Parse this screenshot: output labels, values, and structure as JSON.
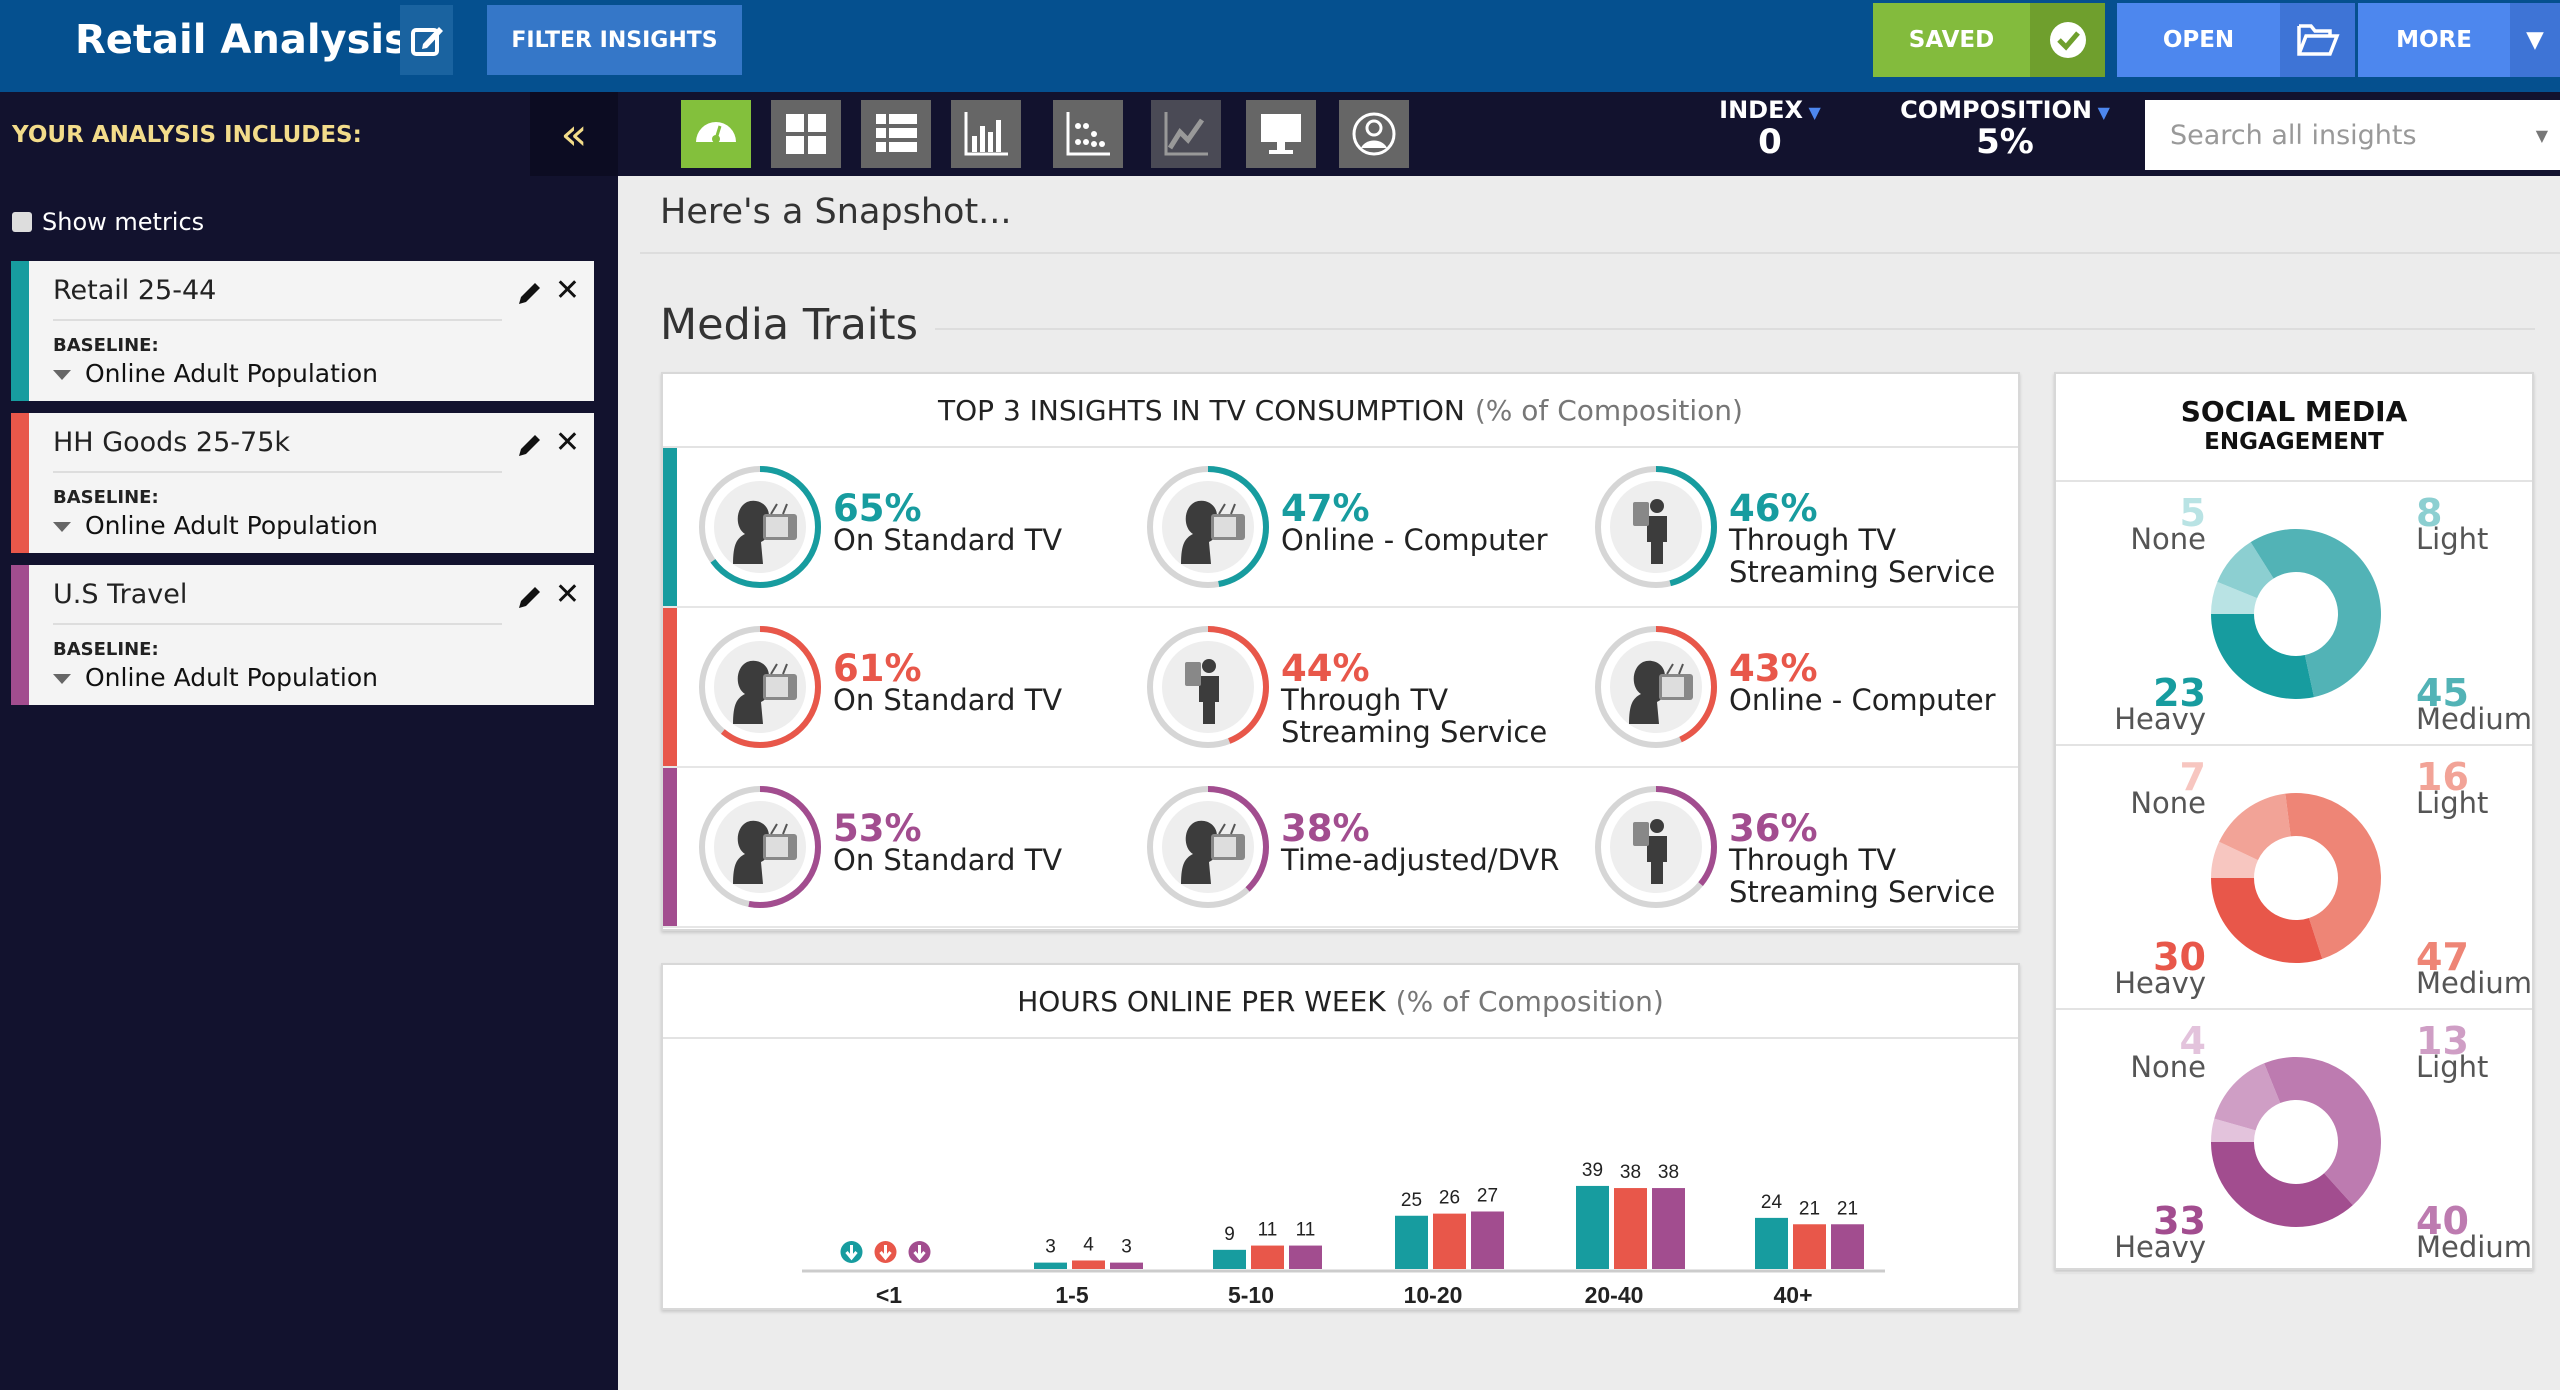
{
  "header": {
    "title": "Retail Analysis",
    "filter_label": "FILTER INSIGHTS",
    "saved_label": "SAVED",
    "open_label": "OPEN",
    "more_label": "MORE"
  },
  "toolbar": {
    "icons": [
      "dashboard-icon",
      "grid-icon",
      "list-icon",
      "bar-chart-icon",
      "scatter-icon",
      "trend-icon",
      "monitor-icon",
      "profile-icon"
    ],
    "index_label": "INDEX",
    "index_value": "0",
    "composition_label": "COMPOSITION",
    "composition_value": "5%",
    "search_placeholder": "Search all insights"
  },
  "sidebar": {
    "heading": "YOUR ANALYSIS INCLUDES:",
    "collapse": "«",
    "show_metrics": "Show metrics",
    "audiences": [
      {
        "name": "Retail 25-44",
        "baseline_label": "BASELINE:",
        "baseline": "Online Adult Population",
        "color": "#179c9f"
      },
      {
        "name": "HH Goods 25-75k",
        "baseline_label": "BASELINE:",
        "baseline": "Online Adult Population",
        "color": "#e8574a"
      },
      {
        "name": "U.S Travel",
        "baseline_label": "BASELINE:",
        "baseline": "Online Adult Population",
        "color": "#a24d8f"
      }
    ]
  },
  "main": {
    "snapshot_title": "Here's a Snapshot...",
    "section_title": "Media Traits"
  },
  "colors": {
    "teal": "#179c9f",
    "red": "#e8574a",
    "purple": "#a24d8f"
  },
  "tv": {
    "title": "TOP 3 INSIGHTS IN TV CONSUMPTION",
    "subtitle": "(% of Composition)",
    "rows": [
      [
        {
          "pct": 65,
          "label": "On Standard TV",
          "icon": "person-tv-icon"
        },
        {
          "pct": 47,
          "label": "Online - Computer",
          "icon": "person-tv-icon"
        },
        {
          "pct": 46,
          "label": "Through TV Streaming Service",
          "icon": "person-device-icon"
        }
      ],
      [
        {
          "pct": 61,
          "label": "On Standard TV",
          "icon": "person-tv-icon"
        },
        {
          "pct": 44,
          "label": "Through TV Streaming Service",
          "icon": "person-device-icon"
        },
        {
          "pct": 43,
          "label": "Online - Computer",
          "icon": "person-tv-icon"
        }
      ],
      [
        {
          "pct": 53,
          "label": "On Standard TV",
          "icon": "person-tv-icon"
        },
        {
          "pct": 38,
          "label": "Time-adjusted/DVR",
          "icon": "person-tv-icon"
        },
        {
          "pct": 36,
          "label": "Through TV Streaming Service",
          "icon": "person-device-icon"
        }
      ]
    ]
  },
  "social": {
    "title": "SOCIAL MEDIA",
    "subtitle": "ENGAGEMENT",
    "groups": [
      {
        "None": 5,
        "Light": 8,
        "Heavy": 23,
        "Medium": 45
      },
      {
        "None": 7,
        "Light": 16,
        "Heavy": 30,
        "Medium": 47
      },
      {
        "None": 4,
        "Light": 13,
        "Heavy": 33,
        "Medium": 40
      }
    ],
    "labels": [
      "None",
      "Light",
      "Heavy",
      "Medium"
    ]
  },
  "chart_data": {
    "type": "bar",
    "title": "HOURS ONLINE PER WEEK",
    "subtitle": "(% of Composition)",
    "categories": [
      "<1",
      "1-5",
      "5-10",
      "10-20",
      "20-40",
      "40+"
    ],
    "series": [
      {
        "values": [
          null,
          3,
          9,
          25,
          39,
          24
        ]
      },
      {
        "values": [
          null,
          4,
          11,
          26,
          38,
          21
        ]
      },
      {
        "values": [
          null,
          3,
          11,
          27,
          38,
          21
        ]
      }
    ],
    "note": "<1 shown as down-arrow markers (below threshold)"
  }
}
